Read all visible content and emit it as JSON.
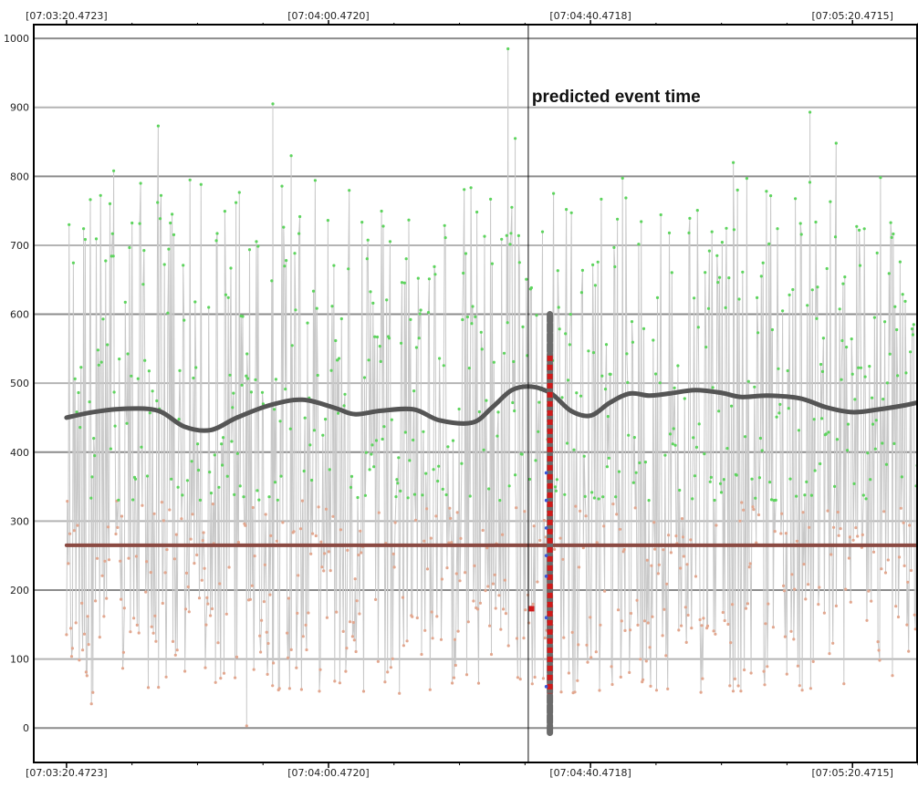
{
  "chart_data": {
    "type": "scatter",
    "title": "",
    "xlabel": "",
    "ylabel": "",
    "x_tick_labels": [
      "[07:03:20.4723]",
      "[07:04:00.4720]",
      "[07:04:40.4718]",
      "[07:05:20.4715]"
    ],
    "x_tick_seconds": [
      0,
      40,
      80,
      120
    ],
    "xlim_seconds": [
      -5,
      130
    ],
    "ylim": [
      -50,
      1020
    ],
    "y_ticks": [
      0,
      100,
      200,
      300,
      400,
      500,
      600,
      700,
      800,
      900,
      1000
    ],
    "grid": true,
    "annotation": {
      "text": "predicted event time",
      "x_seconds": 70.5
    },
    "event_marker": {
      "x_seconds": 73.8,
      "y_range": [
        -10,
        600
      ],
      "red_segment": [
        50,
        540
      ]
    },
    "series": [
      {
        "role": "smoothed-trend",
        "color": "#555555",
        "x": [
          0,
          4,
          9,
          14,
          18,
          22,
          26,
          31,
          36,
          41,
          44,
          48,
          53,
          57,
          62,
          65,
          68,
          71,
          74,
          77,
          80,
          83,
          86,
          89,
          92,
          96,
          100,
          103,
          107,
          112,
          116,
          120,
          124,
          128,
          130
        ],
        "values": [
          450,
          458,
          463,
          460,
          437,
          432,
          450,
          468,
          476,
          464,
          455,
          460,
          462,
          446,
          443,
          465,
          490,
          495,
          485,
          460,
          453,
          472,
          485,
          482,
          485,
          490,
          486,
          480,
          482,
          478,
          465,
          458,
          462,
          468,
          472
        ]
      },
      {
        "role": "baseline",
        "color": "#8b4a42",
        "x": [
          0,
          130
        ],
        "values": [
          265,
          265
        ]
      }
    ],
    "scatter_colors": {
      "upper_points": "#5ed45e",
      "lower_points": "#e2a78f",
      "connecting_line": "#c8c8c8",
      "event_points": "#d11a1a",
      "event_blue_points": "#3a58d8"
    },
    "noise": {
      "upper_range": [
        330,
        800
      ],
      "lower_range": [
        50,
        330
      ],
      "outliers": [
        {
          "x": 67.4,
          "y": 985
        },
        {
          "x": 31.5,
          "y": 905
        },
        {
          "x": 113.5,
          "y": 893
        },
        {
          "x": 14.0,
          "y": 873
        },
        {
          "x": 68.5,
          "y": 855
        },
        {
          "x": 117.5,
          "y": 848
        },
        {
          "x": 7.2,
          "y": 808
        },
        {
          "x": 34.3,
          "y": 830
        },
        {
          "x": 101.8,
          "y": 820
        },
        {
          "x": 27.5,
          "y": 3
        },
        {
          "x": 3.8,
          "y": 35
        },
        {
          "x": 71.0,
          "y": 173
        }
      ]
    }
  }
}
